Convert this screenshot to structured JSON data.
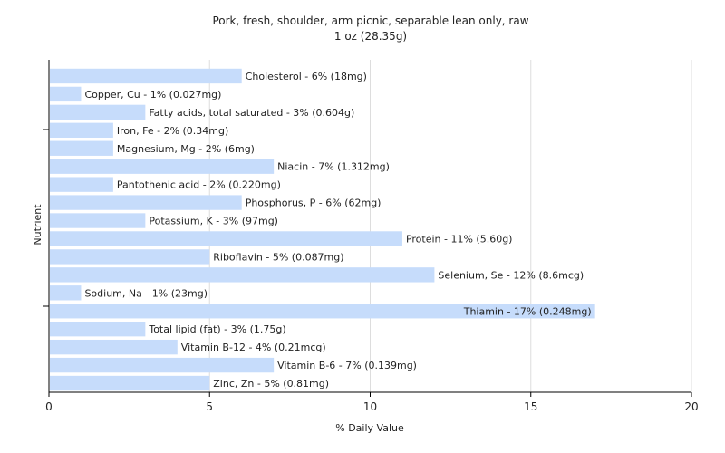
{
  "chart_data": {
    "type": "bar",
    "orientation": "horizontal",
    "title": "Pork, fresh, shoulder, arm picnic, separable lean only, raw",
    "subtitle": "1 oz (28.35g)",
    "xlabel": "% Daily Value",
    "ylabel": "Nutrient",
    "xlim": [
      0,
      20
    ],
    "xticks": [
      0,
      5,
      10,
      15,
      20
    ],
    "grid": true,
    "bar_color": "#c6dcfb",
    "categories": [
      "Cholesterol",
      "Copper, Cu",
      "Fatty acids, total saturated",
      "Iron, Fe",
      "Magnesium, Mg",
      "Niacin",
      "Pantothenic acid",
      "Phosphorus, P",
      "Potassium, K",
      "Protein",
      "Riboflavin",
      "Selenium, Se",
      "Sodium, Na",
      "Thiamin",
      "Total lipid (fat)",
      "Vitamin B-12",
      "Vitamin B-6",
      "Zinc, Zn"
    ],
    "values": [
      6,
      1,
      3,
      2,
      2,
      7,
      2,
      6,
      3,
      11,
      5,
      12,
      1,
      17,
      3,
      4,
      7,
      5
    ],
    "labels": [
      "Cholesterol - 6% (18mg)",
      "Copper, Cu - 1% (0.027mg)",
      "Fatty acids, total saturated - 3% (0.604g)",
      "Iron, Fe - 2% (0.34mg)",
      "Magnesium, Mg - 2% (6mg)",
      "Niacin - 7% (1.312mg)",
      "Pantothenic acid - 2% (0.220mg)",
      "Phosphorus, P - 6% (62mg)",
      "Potassium, K - 3% (97mg)",
      "Protein - 11% (5.60g)",
      "Riboflavin - 5% (0.087mg)",
      "Selenium, Se - 12% (8.6mcg)",
      "Sodium, Na - 1% (23mg)",
      "Thiamin - 17% (0.248mg)",
      "Total lipid (fat) - 3% (1.75g)",
      "Vitamin B-12 - 4% (0.21mcg)",
      "Vitamin B-6 - 7% (0.139mg)",
      "Zinc, Zn - 5% (0.81mg)"
    ]
  }
}
